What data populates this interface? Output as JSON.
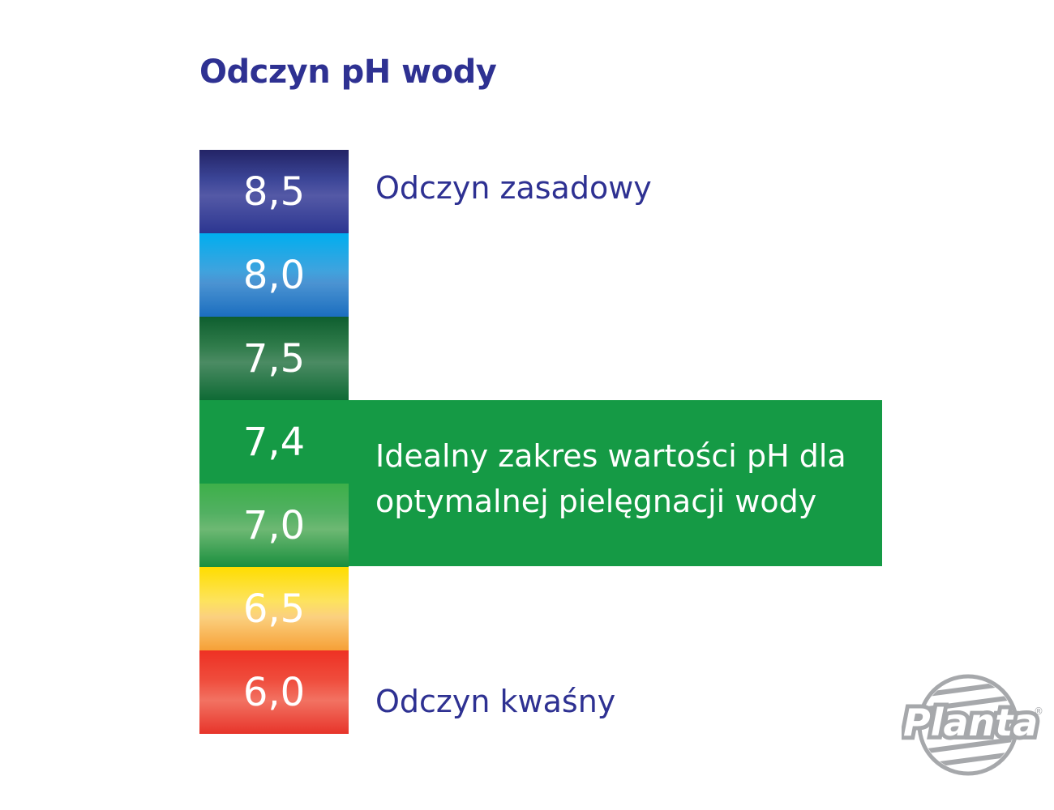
{
  "title": "Odczyn pH wody",
  "scale": [
    {
      "value": "8,5",
      "color": "#2e3192"
    },
    {
      "value": "8,0",
      "color": "#1b8ad6"
    },
    {
      "value": "7,5",
      "color": "#0e6a35"
    },
    {
      "value": "7,4",
      "color": "#159a45"
    },
    {
      "value": "7,0",
      "color": "#3db049"
    },
    {
      "value": "6,5",
      "color": "#ffdd00"
    },
    {
      "value": "6,0",
      "color": "#ee3124"
    }
  ],
  "labels": {
    "alkaline": "Odczyn zasadowy",
    "acidic": "Odczyn kwaśny",
    "ideal_line1": "Idealny zakres wartości pH dla",
    "ideal_line2": "optymalnej pielęgnacji wody"
  },
  "logo": {
    "text": "Planta",
    "mark": "®",
    "icon": "planta-logo-icon"
  },
  "colors": {
    "title": "#2e3192",
    "ideal_band": "#159a45",
    "logo": "#a6a8ab"
  }
}
